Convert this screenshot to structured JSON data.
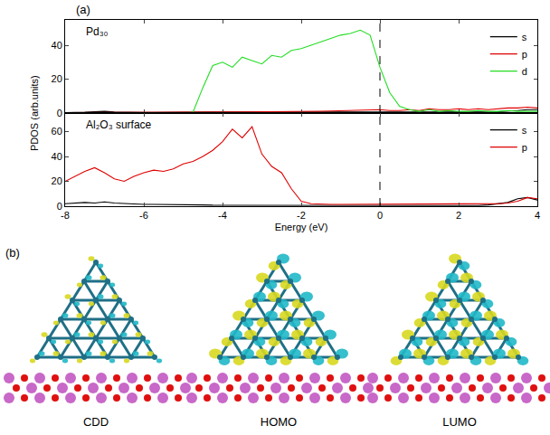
{
  "panel_label": "(a)",
  "chart_data": [
    {
      "type": "line",
      "title": "Pd₃₀",
      "ylabel": "PDOS (arb.units)",
      "x": [
        -8,
        -7.75,
        -7.5,
        -7.25,
        -7,
        -6.75,
        -6.5,
        -6.25,
        -6,
        -5.75,
        -5.5,
        -5.25,
        -5,
        -4.75,
        -4.5,
        -4.25,
        -4,
        -3.75,
        -3.5,
        -3.25,
        -3,
        -2.75,
        -2.5,
        -2.25,
        -2,
        -1.75,
        -1.5,
        -1.25,
        -1,
        -0.75,
        -0.5,
        -0.25,
        0,
        0.25,
        0.5,
        0.75,
        1,
        1.25,
        1.5,
        1.75,
        2,
        2.25,
        2.5,
        2.75,
        3,
        3.25,
        3.5,
        3.75,
        4
      ],
      "series": [
        {
          "name": "s",
          "color": "#000000",
          "values": [
            0.3,
            0.3,
            0.5,
            0.8,
            1,
            0.6,
            0.4,
            0.4,
            0.4,
            0.4,
            0.5,
            0.5,
            0.5,
            0.6,
            0.8,
            0.7,
            0.6,
            0.6,
            0.5,
            0.5,
            0.5,
            0.5,
            0.5,
            0.4,
            0.4,
            0.4,
            0.4,
            0.4,
            0.4,
            0.4,
            0.4,
            0.4,
            0.4,
            0.3,
            0.3,
            0.3,
            0.3,
            0.3,
            0.4,
            0.4,
            0.5,
            0.5,
            0.6,
            0.7,
            0.8,
            1,
            1.5,
            2,
            2
          ]
        },
        {
          "name": "p",
          "color": "#e00000",
          "values": [
            0.2,
            0.2,
            0.2,
            0.2,
            0.2,
            0.2,
            0.2,
            0.2,
            0.2,
            0.2,
            0.2,
            0.2,
            0.2,
            0.5,
            0.5,
            0.6,
            0.6,
            0.6,
            0.7,
            0.7,
            0.8,
            0.8,
            0.9,
            0.9,
            1,
            1,
            1.1,
            1.2,
            1.3,
            1.4,
            1.5,
            1.8,
            2,
            1.5,
            1.5,
            2,
            1.5,
            2.5,
            2,
            2,
            2.5,
            2,
            2.5,
            2,
            2.5,
            3,
            3,
            3.5,
            3
          ]
        },
        {
          "name": "d",
          "color": "#22dd22",
          "values": [
            0,
            0,
            0,
            0,
            0,
            0,
            0,
            0,
            0,
            0,
            0,
            0,
            0,
            0.5,
            15,
            28,
            30,
            27,
            33,
            31,
            29,
            34,
            33,
            37,
            38,
            40,
            42,
            44,
            46,
            47,
            49,
            46,
            27,
            12,
            4,
            2,
            1,
            2,
            1,
            1.5,
            1,
            1,
            1.5,
            1,
            1,
            1.5,
            1,
            1,
            1
          ]
        }
      ],
      "xlim": [
        -8,
        4
      ],
      "xticks": [
        -8,
        -6,
        -4,
        -2,
        0,
        2,
        4
      ],
      "ylim": [
        0,
        55
      ],
      "yticks": [
        0,
        20,
        40
      ],
      "reference_line": {
        "x": 0,
        "line_style": "dashed"
      },
      "legend": "upper right",
      "tick_labels": "y",
      "grid": false
    },
    {
      "type": "line",
      "title": "Al₂O₃ surface",
      "xlabel": "Energy (eV)",
      "x": [
        -8,
        -7.75,
        -7.5,
        -7.25,
        -7,
        -6.75,
        -6.5,
        -6.25,
        -6,
        -5.75,
        -5.5,
        -5.25,
        -5,
        -4.75,
        -4.5,
        -4.25,
        -4,
        -3.75,
        -3.5,
        -3.25,
        -3,
        -2.75,
        -2.5,
        -2.25,
        -2,
        -1.75,
        -1.5,
        -1.25,
        -1,
        -0.75,
        -0.5,
        -0.25,
        0,
        0.25,
        0.5,
        0.75,
        1,
        1.25,
        1.5,
        1.75,
        2,
        2.25,
        2.5,
        2.75,
        3,
        3.25,
        3.5,
        3.75,
        4
      ],
      "series": [
        {
          "name": "s",
          "color": "#000000",
          "values": [
            2,
            2.5,
            3,
            2.5,
            3.5,
            2.5,
            2,
            2,
            1.5,
            1.5,
            1.5,
            1,
            1,
            1,
            1,
            0.8,
            0.8,
            0.8,
            0.6,
            0.6,
            0.5,
            0.5,
            0.5,
            0.4,
            0.4,
            0.4,
            0.4,
            0.4,
            0.4,
            0.4,
            0.4,
            0.4,
            0.4,
            0.4,
            0.4,
            0.4,
            0.4,
            0.4,
            0.4,
            0.4,
            0.4,
            0.4,
            0.5,
            1,
            2,
            3,
            6,
            7,
            5
          ]
        },
        {
          "name": "p",
          "color": "#e00000",
          "values": [
            20,
            24,
            28,
            31,
            27,
            22,
            20,
            24,
            27,
            29,
            28,
            30,
            34,
            36,
            40,
            45,
            52,
            62,
            55,
            64,
            42,
            32,
            27,
            14,
            4,
            2,
            1.5,
            1.5,
            1.5,
            1.5,
            1.5,
            1.5,
            1.5,
            1.5,
            1.5,
            1.5,
            1.5,
            1.5,
            1.5,
            1.5,
            1.5,
            1.5,
            1.5,
            1.5,
            2,
            2.5,
            4,
            7,
            6
          ]
        }
      ],
      "xlim": [
        -8,
        4
      ],
      "xticks": [
        -8,
        -6,
        -4,
        -2,
        0,
        2,
        4
      ],
      "ylim": [
        0,
        75
      ],
      "yticks": [
        0,
        20,
        40,
        60
      ],
      "reference_line": {
        "x": 0,
        "line_style": "dashed"
      },
      "legend": "upper right",
      "tick_labels": true,
      "grid": false
    }
  ],
  "figure_b": {
    "label": "(b)",
    "captions": [
      "CDD",
      "HOMO",
      "LUMO"
    ]
  }
}
